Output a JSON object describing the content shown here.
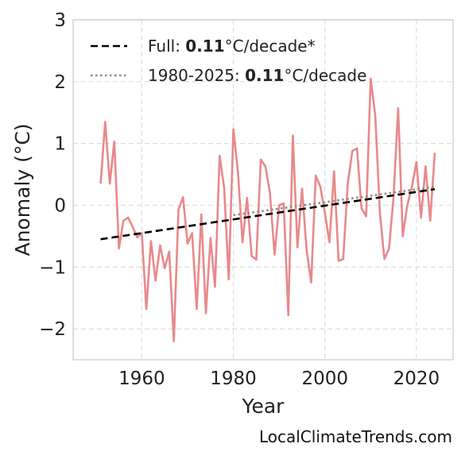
{
  "chart_data": {
    "type": "line",
    "xlabel": "Year",
    "ylabel": "Anomaly (°C)",
    "xlim": [
      1945,
      2028
    ],
    "ylim": [
      -2.5,
      3
    ],
    "x_ticks": [
      1960,
      1980,
      2000,
      2020
    ],
    "y_ticks": [
      -2,
      -1,
      0,
      1,
      2,
      3
    ],
    "y_tick_labels": [
      "−2",
      "−1",
      "0",
      "1",
      "2",
      "3"
    ],
    "grid": true,
    "legend_position": "top-left",
    "series": [
      {
        "name": "",
        "color": "#e8898b",
        "x": [
          1951,
          1952,
          1953,
          1954,
          1955,
          1956,
          1957,
          1958,
          1959,
          1960,
          1961,
          1962,
          1963,
          1964,
          1965,
          1966,
          1967,
          1968,
          1969,
          1970,
          1971,
          1972,
          1973,
          1974,
          1975,
          1976,
          1977,
          1978,
          1979,
          1980,
          1981,
          1982,
          1983,
          1984,
          1985,
          1986,
          1987,
          1988,
          1989,
          1990,
          1991,
          1992,
          1993,
          1994,
          1995,
          1996,
          1997,
          1998,
          1999,
          2000,
          2001,
          2002,
          2003,
          2004,
          2005,
          2006,
          2007,
          2008,
          2009,
          2010,
          2011,
          2012,
          2013,
          2014,
          2015,
          2016,
          2017,
          2018,
          2019,
          2020,
          2021,
          2022,
          2023,
          2024
        ],
        "y": [
          0.35,
          1.35,
          0.35,
          1.03,
          -0.7,
          -0.25,
          -0.2,
          -0.35,
          -0.52,
          -0.45,
          -1.68,
          -0.58,
          -1.22,
          -0.65,
          -1.02,
          -0.75,
          -2.2,
          -0.07,
          0.13,
          -0.62,
          -0.45,
          -1.68,
          -0.15,
          -1.75,
          -0.53,
          -1.32,
          0.8,
          0.28,
          -1.2,
          1.23,
          0.55,
          -0.6,
          0.12,
          -0.82,
          -0.88,
          0.74,
          0.63,
          0.2,
          -0.8,
          0.0,
          0.03,
          -1.78,
          1.13,
          -0.68,
          0.27,
          -0.72,
          -1.25,
          0.48,
          0.3,
          -0.12,
          -0.6,
          0.55,
          -0.9,
          -0.87,
          0.35,
          0.88,
          0.92,
          -0.05,
          -0.18,
          2.05,
          1.45,
          -0.12,
          -0.87,
          -0.7,
          0.13,
          1.57,
          -0.5,
          0.0,
          0.3,
          0.7,
          -0.2,
          0.63,
          -0.25,
          0.85
        ]
      },
      {
        "name": "Full",
        "style": "dashed",
        "color": "#000000",
        "x": [
          1951,
          2024
        ],
        "y": [
          -0.55,
          0.26
        ]
      },
      {
        "name": "1980-2025",
        "style": "dotted",
        "color": "#8a8a8a",
        "x": [
          1980,
          2024
        ],
        "y": [
          -0.16,
          0.3
        ]
      }
    ],
    "legend": [
      {
        "prefix": "Full: ",
        "value": "0.11",
        "suffix": "°C/decade*",
        "style": "dashed",
        "color": "#000000"
      },
      {
        "prefix": "1980-2025: ",
        "value": "0.11",
        "suffix": "°C/decade",
        "style": "dotted",
        "color": "#8a8a8a"
      }
    ]
  },
  "watermark": "LocalClimateTrends.com"
}
